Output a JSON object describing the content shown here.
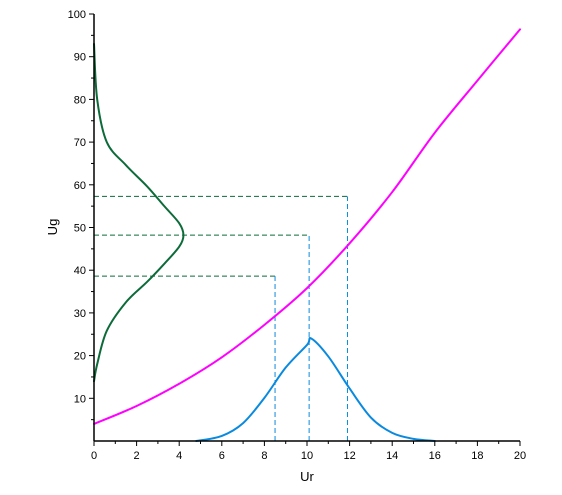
{
  "chart_data": {
    "type": "line",
    "title": "",
    "xlabel": "Ur",
    "ylabel": "Ug",
    "xlim": [
      0,
      20
    ],
    "ylim": [
      0,
      100
    ],
    "x_ticks": [
      0,
      2,
      4,
      6,
      8,
      10,
      12,
      14,
      16,
      18,
      20
    ],
    "y_ticks": [
      10,
      20,
      30,
      40,
      50,
      60,
      70,
      80,
      90,
      100
    ],
    "grid": false,
    "legend": "none",
    "series": [
      {
        "color": "#ff00ff",
        "points": [
          [
            0,
            4
          ],
          [
            2,
            8.2
          ],
          [
            4,
            13.4
          ],
          [
            6,
            19.6
          ],
          [
            8,
            27.2
          ],
          [
            10,
            35.8
          ],
          [
            12,
            46.3
          ],
          [
            14,
            58.3
          ],
          [
            16,
            72.2
          ],
          [
            18,
            84.4
          ],
          [
            20,
            96.4
          ]
        ]
      },
      {
        "color": "#0a8adf",
        "points": [
          [
            4.8,
            0
          ],
          [
            6,
            1.2
          ],
          [
            7,
            4.2
          ],
          [
            8,
            10.1
          ],
          [
            9,
            17.2
          ],
          [
            10,
            22.5
          ],
          [
            10.2,
            24
          ],
          [
            11,
            19.8
          ],
          [
            12,
            12.3
          ],
          [
            13,
            5.5
          ],
          [
            14,
            1.9
          ],
          [
            15,
            0.5
          ],
          [
            16,
            0
          ]
        ]
      },
      {
        "color": "#0d6b3a",
        "points": [
          [
            0,
            93
          ],
          [
            0.15,
            80
          ],
          [
            0.6,
            70
          ],
          [
            1.5,
            64.6
          ],
          [
            2.5,
            59.6
          ],
          [
            3.3,
            55
          ],
          [
            4,
            51
          ],
          [
            4.2,
            48.2
          ],
          [
            4,
            45.5
          ],
          [
            3.3,
            41.5
          ],
          [
            2.5,
            37.3
          ],
          [
            1.5,
            32.5
          ],
          [
            0.6,
            25.8
          ],
          [
            0.15,
            18
          ],
          [
            0,
            14
          ]
        ]
      }
    ],
    "reference_lines": [
      {
        "kind": "horizontal",
        "color": "#0d6b3a",
        "y": 57.3,
        "x_from": 0,
        "x_to": 11.9
      },
      {
        "kind": "horizontal",
        "color": "#0d6b3a",
        "y": 48.2,
        "x_from": 0,
        "x_to": 10.1
      },
      {
        "kind": "horizontal",
        "color": "#0d6b3a",
        "y": 38.6,
        "x_from": 0,
        "x_to": 8.5
      },
      {
        "kind": "vertical",
        "color": "#0a8adf",
        "x": 8.5,
        "y_from": 0,
        "y_to": 38.6
      },
      {
        "kind": "vertical",
        "color": "#0a8adf",
        "x": 10.1,
        "y_from": 0,
        "y_to": 48.2
      },
      {
        "kind": "vertical",
        "color": "#0a8adf",
        "x": 11.9,
        "y_from": 0,
        "y_to": 57.3
      }
    ]
  }
}
